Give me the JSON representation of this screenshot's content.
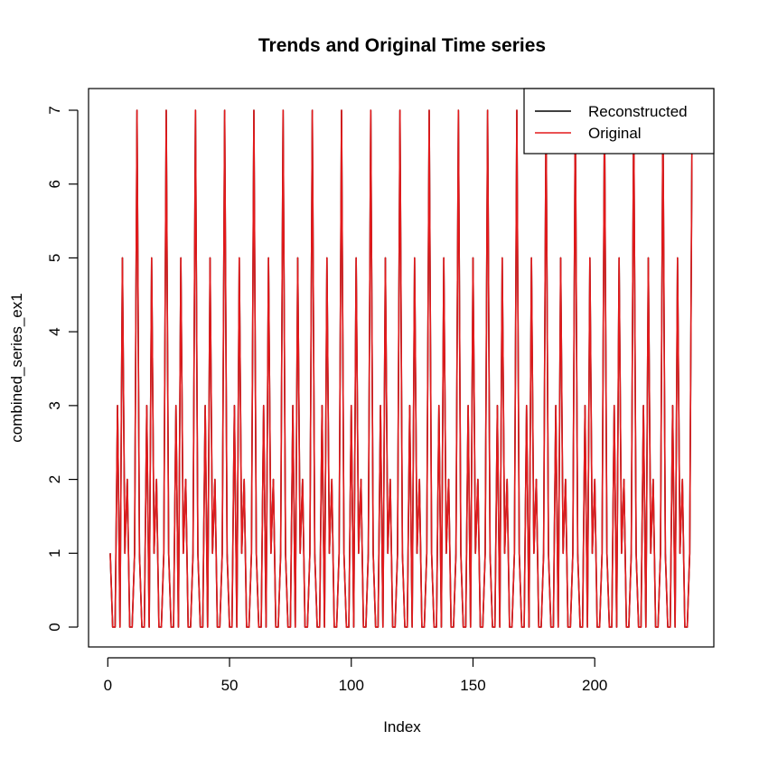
{
  "chart_data": {
    "type": "line",
    "title": "Trends and Original Time series",
    "xlabel": "Index",
    "ylabel": "combined_series_ex1",
    "xlim": [
      1,
      240
    ],
    "ylim": [
      0,
      7
    ],
    "x_ticks": [
      0,
      50,
      100,
      150,
      200
    ],
    "y_ticks": [
      0,
      1,
      2,
      3,
      4,
      5,
      6,
      7
    ],
    "grid": false,
    "legend_position": "top-right",
    "x_start": 1,
    "series": [
      {
        "name": "Reconstructed",
        "color": "#000000",
        "values": [
          1,
          0,
          0,
          3,
          0,
          5,
          1,
          2,
          0,
          0,
          1,
          7,
          1,
          0,
          0,
          3,
          0,
          5,
          1,
          2,
          0,
          0,
          1,
          7,
          1,
          0,
          0,
          3,
          0,
          5,
          1,
          2,
          0,
          0,
          1,
          7,
          1,
          0,
          0,
          3,
          0,
          5,
          1,
          2,
          0,
          0,
          1,
          7,
          1,
          0,
          0,
          3,
          0,
          5,
          1,
          2,
          0,
          0,
          1,
          7,
          1,
          0,
          0,
          3,
          0,
          5,
          1,
          2,
          0,
          0,
          1,
          7,
          1,
          0,
          0,
          3,
          0,
          5,
          1,
          2,
          0,
          0,
          1,
          7,
          1,
          0,
          0,
          3,
          0,
          5,
          1,
          2,
          0,
          0,
          1,
          7,
          1,
          0,
          0,
          3,
          0,
          5,
          1,
          2,
          0,
          0,
          1,
          7,
          1,
          0,
          0,
          3,
          0,
          5,
          1,
          2,
          0,
          0,
          1,
          7,
          1,
          0,
          0,
          3,
          0,
          5,
          1,
          2,
          0,
          0,
          1,
          7,
          1,
          0,
          0,
          3,
          0,
          5,
          1,
          2,
          0,
          0,
          1,
          7,
          1,
          0,
          0,
          3,
          0,
          5,
          1,
          2,
          0,
          0,
          1,
          7,
          1,
          0,
          0,
          3,
          0,
          5,
          1,
          2,
          0,
          0,
          1,
          7,
          1,
          0,
          0,
          3,
          0,
          5,
          1,
          2,
          0,
          0,
          1,
          7,
          1,
          0,
          0,
          3,
          0,
          5,
          1,
          2,
          0,
          0,
          1,
          7,
          1,
          0,
          0,
          3,
          0,
          5,
          1,
          2,
          0,
          0,
          1,
          7,
          1,
          0,
          0,
          3,
          0,
          5,
          1,
          2,
          0,
          0,
          1,
          7,
          1,
          0,
          0,
          3,
          0,
          5,
          1,
          2,
          0,
          0,
          1,
          7,
          1,
          0,
          0,
          3,
          0,
          5,
          1,
          2,
          0,
          0,
          1,
          7
        ]
      },
      {
        "name": "Original",
        "color": "#e41a1c",
        "values": [
          1,
          0,
          0,
          3,
          0,
          5,
          1,
          2,
          0,
          0,
          1,
          7,
          1,
          0,
          0,
          3,
          0,
          5,
          1,
          2,
          0,
          0,
          1,
          7,
          1,
          0,
          0,
          3,
          0,
          5,
          1,
          2,
          0,
          0,
          1,
          7,
          1,
          0,
          0,
          3,
          0,
          5,
          1,
          2,
          0,
          0,
          1,
          7,
          1,
          0,
          0,
          3,
          0,
          5,
          1,
          2,
          0,
          0,
          1,
          7,
          1,
          0,
          0,
          3,
          0,
          5,
          1,
          2,
          0,
          0,
          1,
          7,
          1,
          0,
          0,
          3,
          0,
          5,
          1,
          2,
          0,
          0,
          1,
          7,
          1,
          0,
          0,
          3,
          0,
          5,
          1,
          2,
          0,
          0,
          1,
          7,
          1,
          0,
          0,
          3,
          0,
          5,
          1,
          2,
          0,
          0,
          1,
          7,
          1,
          0,
          0,
          3,
          0,
          5,
          1,
          2,
          0,
          0,
          1,
          7,
          1,
          0,
          0,
          3,
          0,
          5,
          1,
          2,
          0,
          0,
          1,
          7,
          1,
          0,
          0,
          3,
          0,
          5,
          1,
          2,
          0,
          0,
          1,
          7,
          1,
          0,
          0,
          3,
          0,
          5,
          1,
          2,
          0,
          0,
          1,
          7,
          1,
          0,
          0,
          3,
          0,
          5,
          1,
          2,
          0,
          0,
          1,
          7,
          1,
          0,
          0,
          3,
          0,
          5,
          1,
          2,
          0,
          0,
          1,
          7,
          1,
          0,
          0,
          3,
          0,
          5,
          1,
          2,
          0,
          0,
          1,
          7,
          1,
          0,
          0,
          3,
          0,
          5,
          1,
          2,
          0,
          0,
          1,
          7,
          1,
          0,
          0,
          3,
          0,
          5,
          1,
          2,
          0,
          0,
          1,
          7,
          1,
          0,
          0,
          3,
          0,
          5,
          1,
          2,
          0,
          0,
          1,
          7,
          1,
          0,
          0,
          3,
          0,
          5,
          1,
          2,
          0,
          0,
          1,
          7
        ]
      }
    ]
  }
}
